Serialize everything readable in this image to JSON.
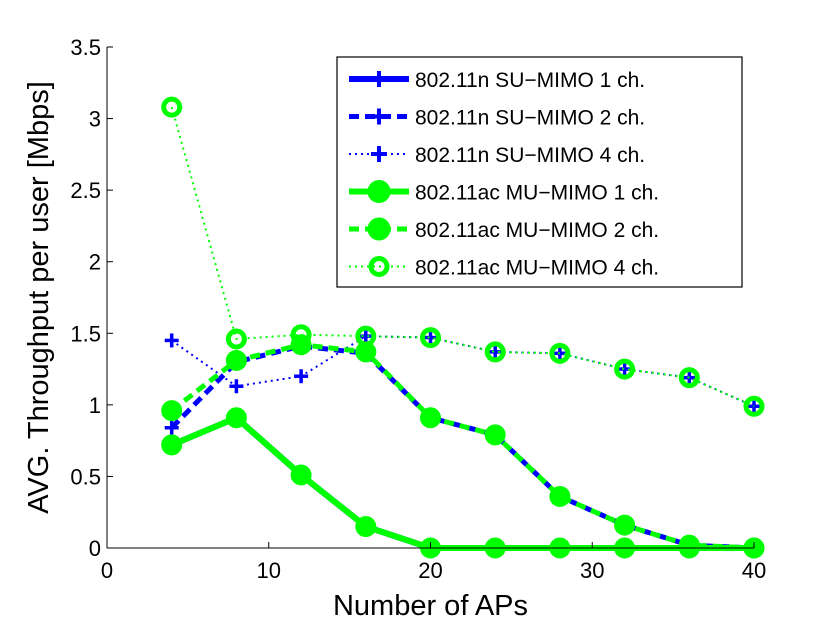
{
  "chart_data": {
    "type": "line",
    "title": "",
    "xlabel": "Number of APs",
    "ylabel": "AVG. Throughput per user [Mbps]",
    "xlim": [
      0,
      40
    ],
    "ylim": [
      0,
      3.5
    ],
    "xticks": [
      "0",
      "10",
      "20",
      "30",
      "40"
    ],
    "yticks": [
      "0",
      "0.5",
      "1",
      "1.5",
      "2",
      "2.5",
      "3",
      "3.5"
    ],
    "grid": false,
    "legend_position": "top-right",
    "x": [
      4,
      8,
      12,
      16,
      20,
      24,
      28,
      32,
      36,
      40
    ],
    "series": [
      {
        "name": "802.11n SU−MIMO 1 ch.",
        "color": "#0000ff",
        "style": "solid",
        "marker": "plus",
        "values": [
          0.72,
          0.91,
          0.51,
          0.15,
          0.0,
          0.0,
          0.0,
          0.0,
          0.0,
          0.0
        ]
      },
      {
        "name": "802.11n SU−MIMO 2 ch.",
        "color": "#0000ff",
        "style": "dashed",
        "marker": "plus",
        "values": [
          0.84,
          1.3,
          1.41,
          1.36,
          0.91,
          0.79,
          0.36,
          0.16,
          0.02,
          0.0
        ]
      },
      {
        "name": "802.11n SU−MIMO 4 ch.",
        "color": "#0000ff",
        "style": "dotted",
        "marker": "plus",
        "values": [
          1.45,
          1.13,
          1.2,
          1.48,
          1.47,
          1.37,
          1.36,
          1.25,
          1.19,
          0.99
        ]
      },
      {
        "name": "802.11ac MU−MIMO 1 ch.",
        "color": "#00ff00",
        "style": "solid",
        "marker": "filled-circle",
        "values": [
          0.72,
          0.91,
          0.51,
          0.15,
          0.0,
          0.0,
          0.0,
          0.0,
          0.0,
          0.0
        ]
      },
      {
        "name": "802.11ac MU−MIMO 2 ch.",
        "color": "#00ff00",
        "style": "dashed",
        "marker": "filled-circle",
        "values": [
          0.96,
          1.31,
          1.42,
          1.37,
          0.91,
          0.79,
          0.36,
          0.16,
          0.02,
          0.0
        ]
      },
      {
        "name": "802.11ac MU−MIMO 4 ch.",
        "color": "#00ff00",
        "style": "dotted",
        "marker": "ring-circle",
        "values": [
          3.08,
          1.46,
          1.49,
          1.48,
          1.47,
          1.37,
          1.36,
          1.25,
          1.19,
          0.99
        ]
      }
    ]
  }
}
